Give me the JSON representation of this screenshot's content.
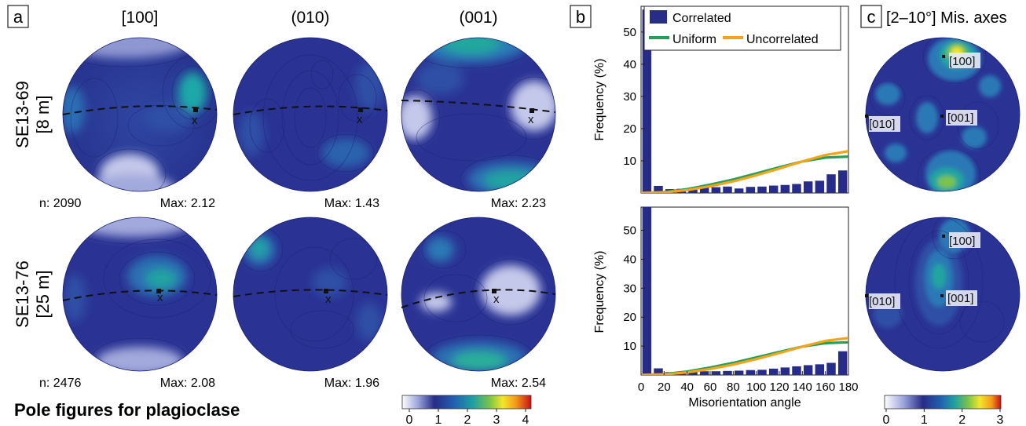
{
  "panel_labels": {
    "a": "a",
    "b": "b",
    "c": "c"
  },
  "panel_c_title": "[2–10°] Mis. axes",
  "bottom_title": "Pole figures for plagioclase",
  "column_headers": [
    "[100]",
    "(010)",
    "(001)"
  ],
  "samples": [
    {
      "name": "SE13-69",
      "depth": "[8 m]",
      "n": "n: 2090",
      "max": [
        "Max: 2.12",
        "Max: 1.43",
        "Max: 2.23"
      ]
    },
    {
      "name": "SE13-76",
      "depth": "[25 m]",
      "n": "n: 2476",
      "max": [
        "Max: 2.08",
        "Max: 1.96",
        "Max: 2.54"
      ]
    }
  ],
  "x_marker": "x",
  "mis_axis_labels": [
    "[100]",
    "[010]",
    "[001]"
  ],
  "colorbars": {
    "a": {
      "ticks": [
        "0",
        "1",
        "2",
        "3",
        "4"
      ]
    },
    "c": {
      "ticks": [
        "0",
        "1",
        "2",
        "3"
      ]
    }
  },
  "colors": {
    "dark_blue": "#262c87",
    "contour_blue": "#2f4aa0",
    "teal": "#1fa0a6",
    "green": "#23a05a",
    "orange": "#f5a31a",
    "pale": "#c4c8ea"
  },
  "chart_data": [
    {
      "type": "bar",
      "panel": "b-top",
      "legend": [
        "Correlated",
        "Uniform",
        "Uncorrelated"
      ],
      "legend_position": "top",
      "xlabel": "",
      "ylabel": "Frequency (%)",
      "xlim": [
        0,
        180
      ],
      "ylim": [
        0,
        58
      ],
      "xticks": [],
      "yticks": [
        "10",
        "20",
        "30",
        "40",
        "50"
      ],
      "bin_width": 10,
      "series": [
        {
          "name": "Correlated",
          "x": [
            5,
            15,
            25,
            35,
            45,
            55,
            65,
            75,
            85,
            95,
            105,
            115,
            125,
            135,
            145,
            155,
            165,
            175
          ],
          "values": [
            57,
            2.2,
            1.2,
            1.3,
            1.5,
            1.7,
            1.8,
            2.0,
            1.4,
            1.9,
            2.0,
            2.3,
            2.5,
            2.8,
            3.6,
            3.8,
            5.8,
            7.0
          ]
        },
        {
          "name": "Uniform",
          "x": [
            0,
            20,
            40,
            60,
            80,
            100,
            120,
            140,
            160,
            180
          ],
          "values": [
            0,
            0.3,
            1.2,
            2.6,
            4.2,
            6.1,
            8.0,
            9.8,
            11.0,
            11.3
          ]
        },
        {
          "name": "Uncorrelated",
          "x": [
            0,
            20,
            40,
            60,
            80,
            100,
            120,
            140,
            160,
            180
          ],
          "values": [
            0,
            0.2,
            0.9,
            2.1,
            3.6,
            5.5,
            7.6,
            9.8,
            11.8,
            13.0
          ]
        }
      ]
    },
    {
      "type": "bar",
      "panel": "b-bottom",
      "xlabel": "Misorientation angle",
      "ylabel": "Frequency (%)",
      "xlim": [
        0,
        180
      ],
      "ylim": [
        0,
        58
      ],
      "xticks": [
        "0",
        "20",
        "40",
        "60",
        "80",
        "100",
        "120",
        "140",
        "160",
        "180"
      ],
      "yticks": [
        "10",
        "20",
        "30",
        "40",
        "50"
      ],
      "bin_width": 10,
      "series": [
        {
          "name": "Correlated",
          "x": [
            5,
            15,
            25,
            35,
            45,
            55,
            65,
            75,
            85,
            95,
            105,
            115,
            125,
            135,
            145,
            155,
            165,
            175
          ],
          "values": [
            59,
            2.3,
            1.0,
            1.1,
            1.2,
            1.3,
            1.3,
            1.4,
            1.5,
            1.7,
            1.8,
            2.2,
            2.6,
            3.0,
            3.4,
            3.7,
            4.2,
            8.2
          ]
        },
        {
          "name": "Uniform",
          "x": [
            0,
            20,
            40,
            60,
            80,
            100,
            120,
            140,
            160,
            180
          ],
          "values": [
            0,
            0.3,
            1.2,
            2.6,
            4.2,
            6.1,
            8.0,
            9.8,
            11.0,
            11.3
          ]
        },
        {
          "name": "Uncorrelated",
          "x": [
            0,
            20,
            40,
            60,
            80,
            100,
            120,
            140,
            160,
            180
          ],
          "values": [
            0,
            0.2,
            0.9,
            2.1,
            3.6,
            5.5,
            7.6,
            9.8,
            11.8,
            12.8
          ]
        }
      ]
    }
  ]
}
